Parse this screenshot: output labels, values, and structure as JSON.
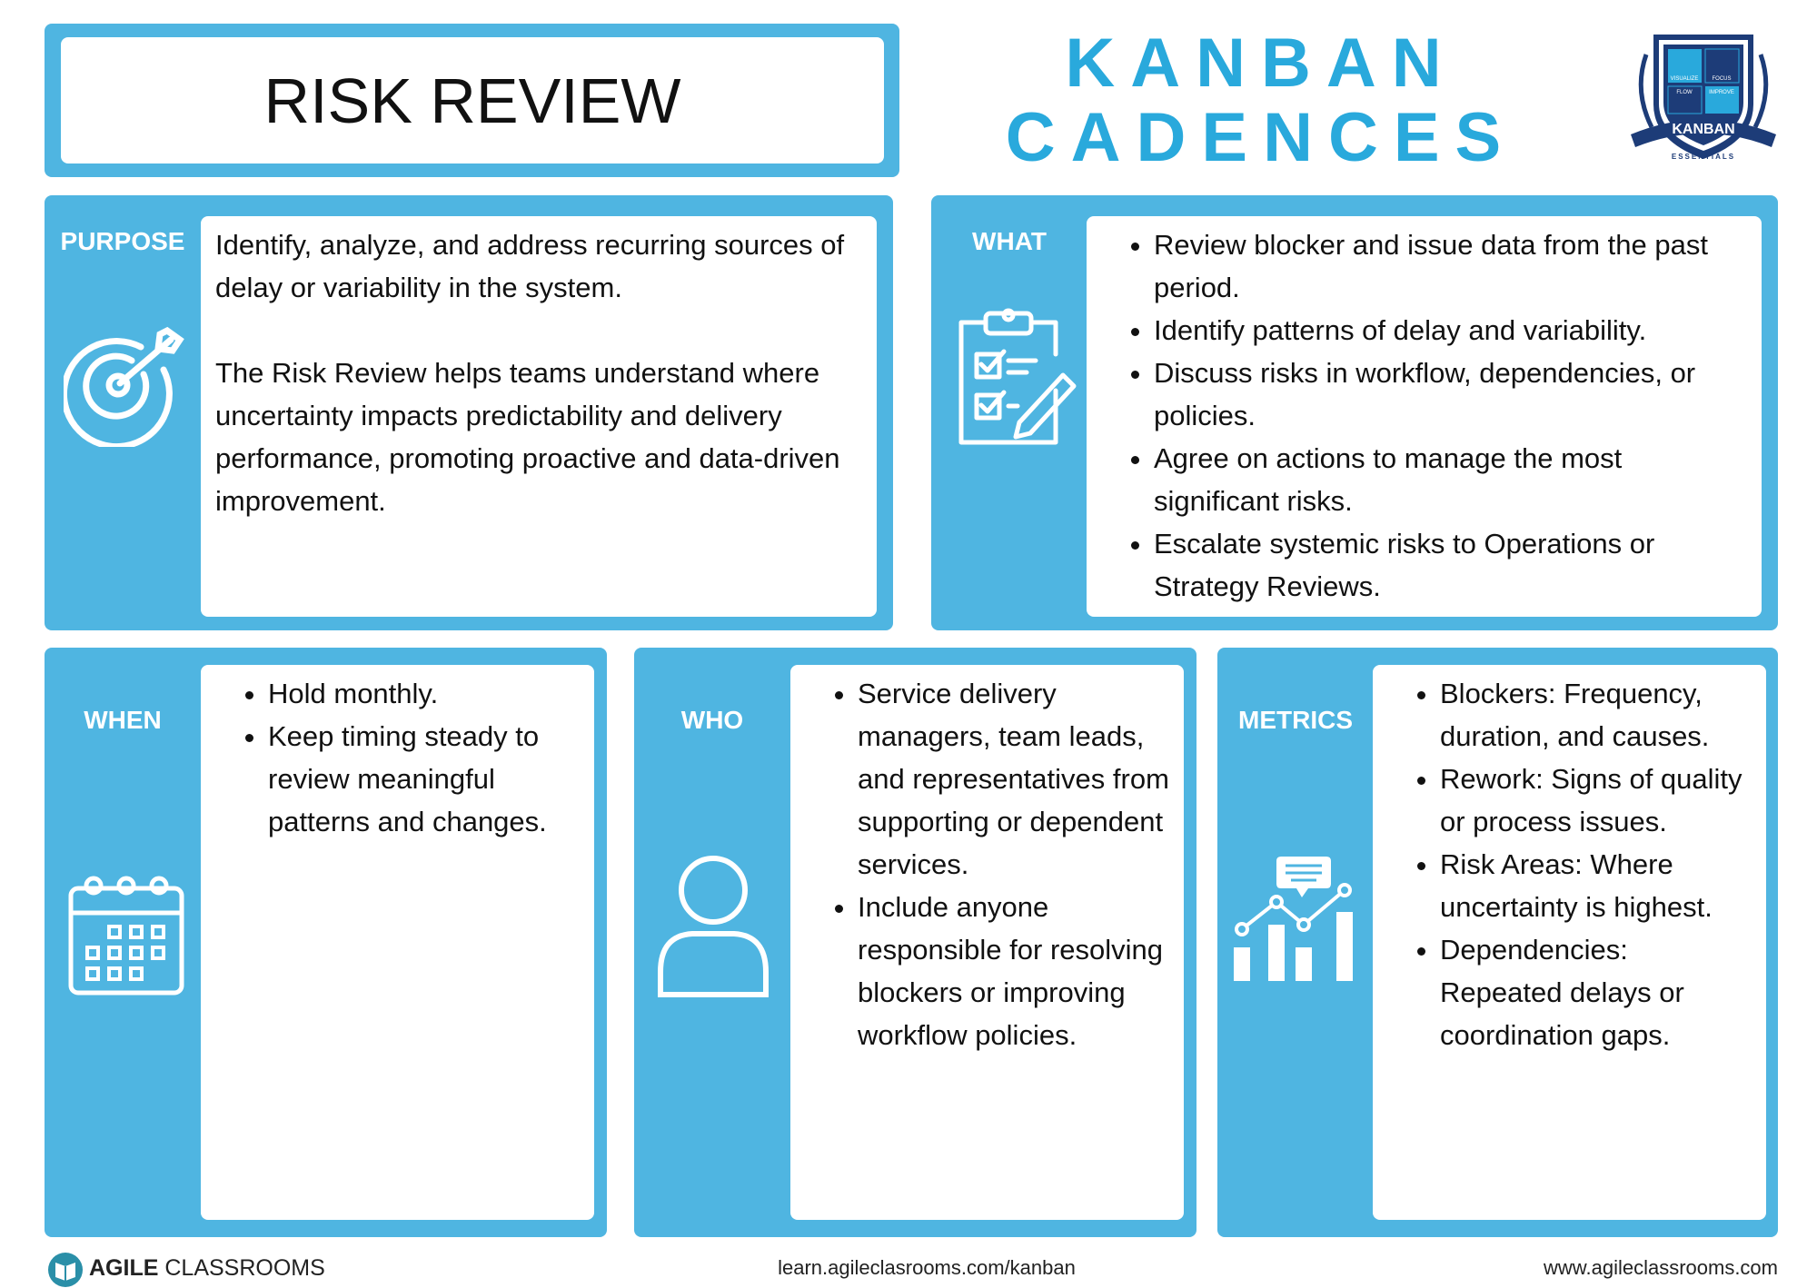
{
  "header": {
    "title": "RISK REVIEW",
    "brand_line1": "KANBAN",
    "brand_line2": "CADENCES",
    "logo": {
      "tiles": [
        "VISUALIZE",
        "FOCUS",
        "FLOW",
        "IMPROVE"
      ],
      "banner": "KANBAN",
      "subtext": "ESSENTIALS"
    }
  },
  "sections": {
    "purpose": {
      "label": "PURPOSE",
      "paragraphs": [
        "Identify, analyze, and address recurring sources of delay or variability in the system.",
        "The Risk Review helps teams understand where uncertainty impacts predictability and delivery performance, promoting proactive and data-driven improvement."
      ]
    },
    "what": {
      "label": "WHAT",
      "items": [
        "Review blocker and issue data from the past period.",
        "Identify patterns of delay and variability.",
        "Discuss risks in workflow, dependencies, or policies.",
        "Agree on actions to manage the most significant risks.",
        "Escalate systemic risks to Operations or Strategy Reviews."
      ]
    },
    "when": {
      "label": "WHEN",
      "items": [
        "Hold monthly.",
        "Keep timing steady to review meaningful patterns and changes."
      ]
    },
    "who": {
      "label": "WHO",
      "items": [
        "Service delivery managers, team leads, and representatives from supporting or dependent services.",
        "Include anyone responsible for resolving blockers or improving workflow policies."
      ]
    },
    "metrics": {
      "label": "METRICS",
      "items": [
        "Blockers: Frequency, duration, and causes.",
        "Rework: Signs of quality or process issues.",
        "Risk Areas: Where uncertainty is highest.",
        "Dependencies: Repeated delays or coordination gaps."
      ]
    }
  },
  "footer": {
    "brand_bold": "AGILE",
    "brand_rest": "CLASSROOMS",
    "center_url": "learn.agileclasrooms.com/kanban",
    "right_url": "www.agileclassrooms.com"
  }
}
